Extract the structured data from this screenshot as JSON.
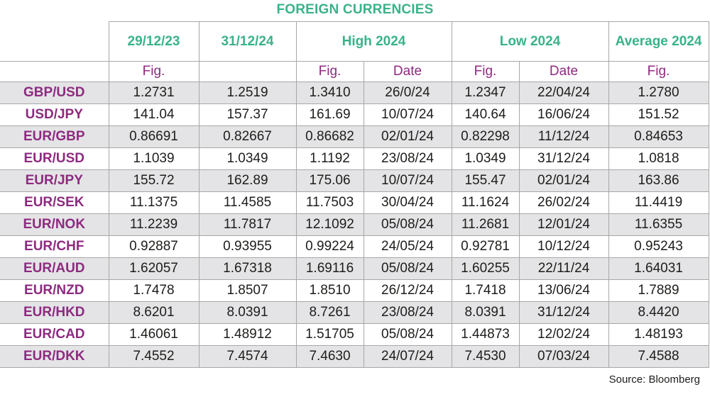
{
  "title": "FOREIGN CURRENCIES",
  "source": "Source:  Bloomberg",
  "headers": {
    "col1": "29/12/23",
    "col2": "31/12/24",
    "high": "High 2024",
    "low": "Low 2024",
    "avg": "Average 2024"
  },
  "subheaders": {
    "c1": "Fig.",
    "c2": "",
    "high_fig": "Fig.",
    "high_date": "Date",
    "low_fig": "Fig.",
    "low_date": "Date",
    "avg_fig": "Fig."
  },
  "rows": [
    {
      "pair": "GBP/USD",
      "v1": "1.2731",
      "v2": "1.2519",
      "high_fig": "1.3410",
      "high_date": "26/0/24",
      "low_fig": "1.2347",
      "low_date": "22/04/24",
      "avg": "1.2780"
    },
    {
      "pair": "USD/JPY",
      "v1": "141.04",
      "v2": "157.37",
      "high_fig": "161.69",
      "high_date": "10/07/24",
      "low_fig": "140.64",
      "low_date": "16/06/24",
      "avg": "151.52"
    },
    {
      "pair": "EUR/GBP",
      "v1": "0.86691",
      "v2": "0.82667",
      "high_fig": "0.86682",
      "high_date": "02/01/24",
      "low_fig": "0.82298",
      "low_date": "11/12/24",
      "avg": "0.84653"
    },
    {
      "pair": "EUR/USD",
      "v1": "1.1039",
      "v2": "1.0349",
      "high_fig": "1.1192",
      "high_date": "23/08/24",
      "low_fig": "1.0349",
      "low_date": "31/12/24",
      "avg": "1.0818"
    },
    {
      "pair": "EUR/JPY",
      "v1": "155.72",
      "v2": "162.89",
      "high_fig": "175.06",
      "high_date": "10/07/24",
      "low_fig": "155.47",
      "low_date": "02/01/24",
      "avg": "163.86"
    },
    {
      "pair": "EUR/SEK",
      "v1": "11.1375",
      "v2": "11.4585",
      "high_fig": "11.7503",
      "high_date": "30/04/24",
      "low_fig": "11.1624",
      "low_date": "26/02/24",
      "avg": "11.4419"
    },
    {
      "pair": "EUR/NOK",
      "v1": "11.2239",
      "v2": "11.7817",
      "high_fig": "12.1092",
      "high_date": "05/08/24",
      "low_fig": "11.2681",
      "low_date": "12/01/24",
      "avg": "11.6355"
    },
    {
      "pair": "EUR/CHF",
      "v1": "0.92887",
      "v2": "0.93955",
      "high_fig": "0.99224",
      "high_date": "24/05/24",
      "low_fig": "0.92781",
      "low_date": "10/12/24",
      "avg": "0.95243"
    },
    {
      "pair": "EUR/AUD",
      "v1": "1.62057",
      "v2": "1.67318",
      "high_fig": "1.69116",
      "high_date": "05/08/24",
      "low_fig": "1.60255",
      "low_date": "22/11/24",
      "avg": "1.64031"
    },
    {
      "pair": "EUR/NZD",
      "v1": "1.7478",
      "v2": "1.8507",
      "high_fig": "1.8510",
      "high_date": "26/12/24",
      "low_fig": "1.7418",
      "low_date": "13/06/24",
      "avg": "1.7889"
    },
    {
      "pair": "EUR/HKD",
      "v1": "8.6201",
      "v2": "8.0391",
      "high_fig": "8.7261",
      "high_date": "23/08/24",
      "low_fig": "8.0391",
      "low_date": "31/12/24",
      "avg": "8.4420"
    },
    {
      "pair": "EUR/CAD",
      "v1": "1.46061",
      "v2": "1.48912",
      "high_fig": "1.51705",
      "high_date": "05/08/24",
      "low_fig": "1.44873",
      "low_date": "12/02/24",
      "avg": "1.48193"
    },
    {
      "pair": "EUR/DKK",
      "v1": "7.4552",
      "v2": "7.4574",
      "high_fig": "7.4630",
      "high_date": "24/07/24",
      "low_fig": "7.4530",
      "low_date": "07/03/24",
      "avg": "7.4588"
    }
  ],
  "colors": {
    "header_green": "#3bb28a",
    "pair_purple": "#8e2a80",
    "row_shade": "#e4e4e6",
    "border": "#a7a7a7"
  }
}
